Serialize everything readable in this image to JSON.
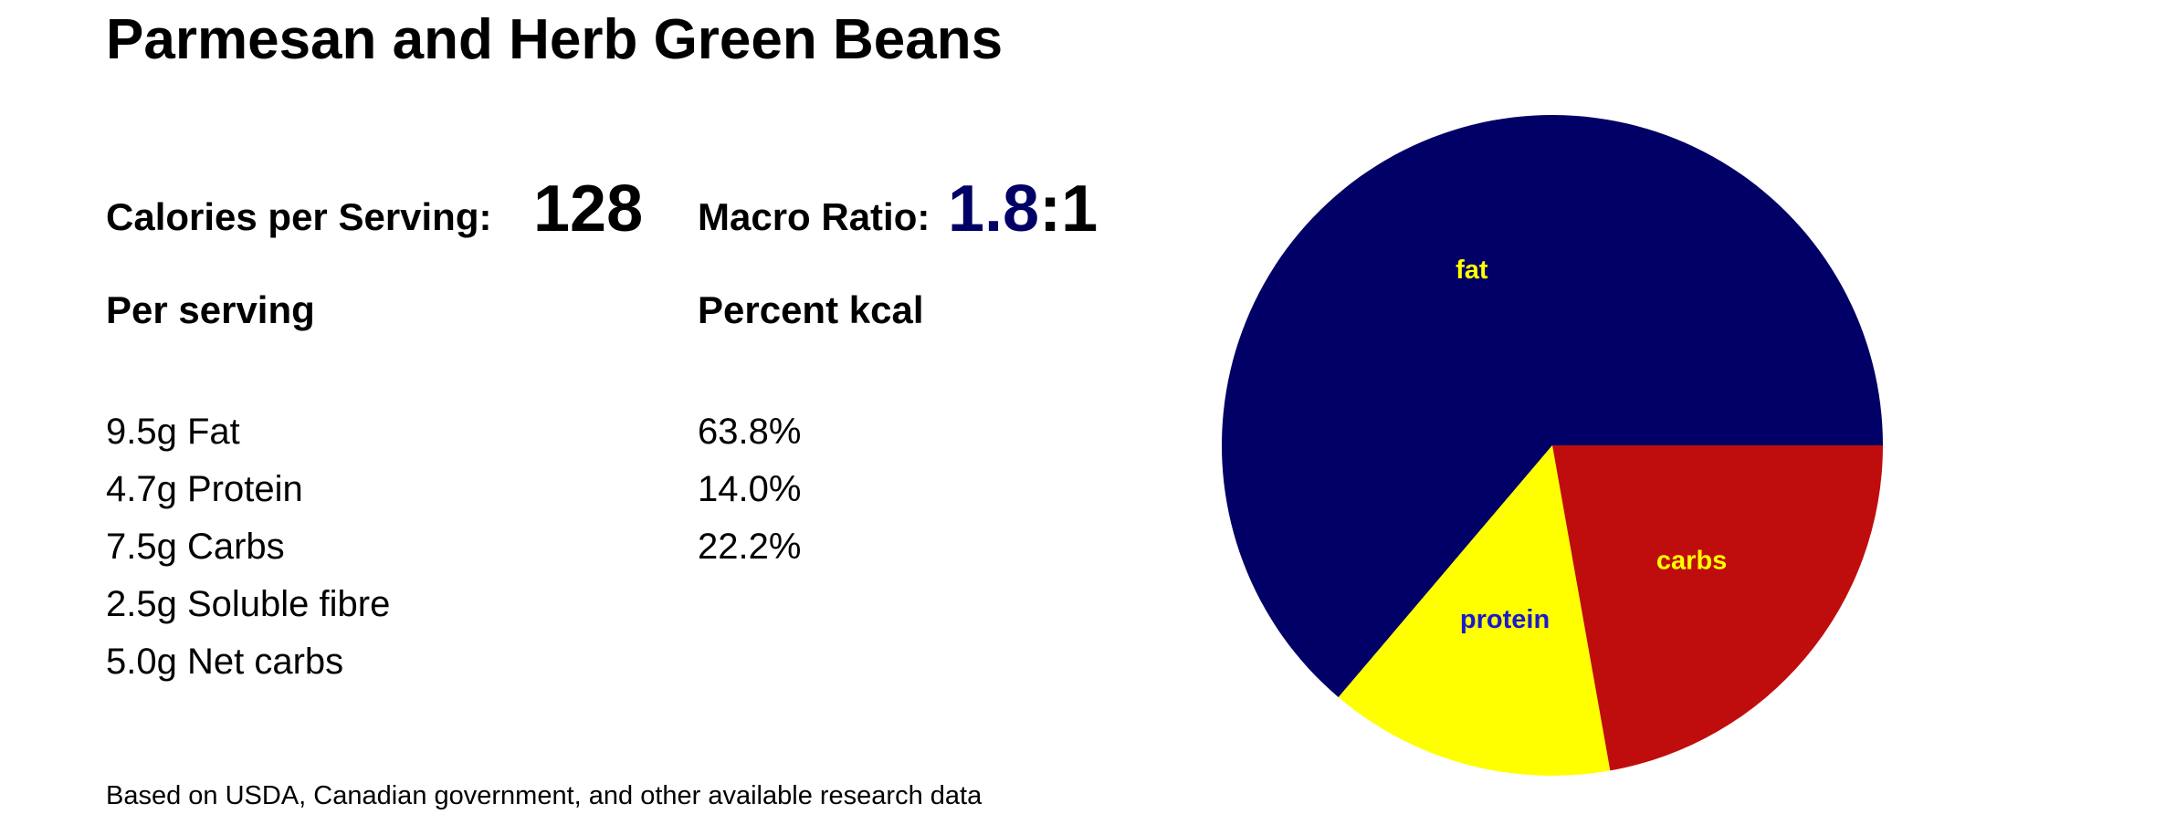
{
  "title": "Parmesan and Herb Green Beans",
  "calories": {
    "label": "Calories per Serving:",
    "value": "128"
  },
  "macro_ratio": {
    "label": "Macro Ratio:",
    "value": "1.8",
    "suffix": ":1",
    "value_color": "#000066"
  },
  "per_serving": {
    "heading": "Per serving",
    "items": [
      "9.5g Fat",
      "4.7g Protein",
      "7.5g Carbs",
      "2.5g Soluble fibre",
      "5.0g Net carbs"
    ]
  },
  "percent_kcal": {
    "heading": "Percent kcal",
    "items": [
      "63.8%",
      "14.0%",
      "22.2%"
    ]
  },
  "footnote": "Based on USDA, Canadian government, and other available research data",
  "chart_data": {
    "type": "pie",
    "slices": [
      {
        "label": "fat",
        "value": 63.8,
        "color": "#000066",
        "label_color": "#ffff00"
      },
      {
        "label": "protein",
        "value": 14.0,
        "color": "#ffff00",
        "label_color": "#1a1acc"
      },
      {
        "label": "carbs",
        "value": 22.2,
        "color": "#bf0d0d",
        "label_color": "#ffff00"
      }
    ],
    "start": "3 o'clock",
    "direction": "counterclockwise",
    "legend": "none"
  }
}
